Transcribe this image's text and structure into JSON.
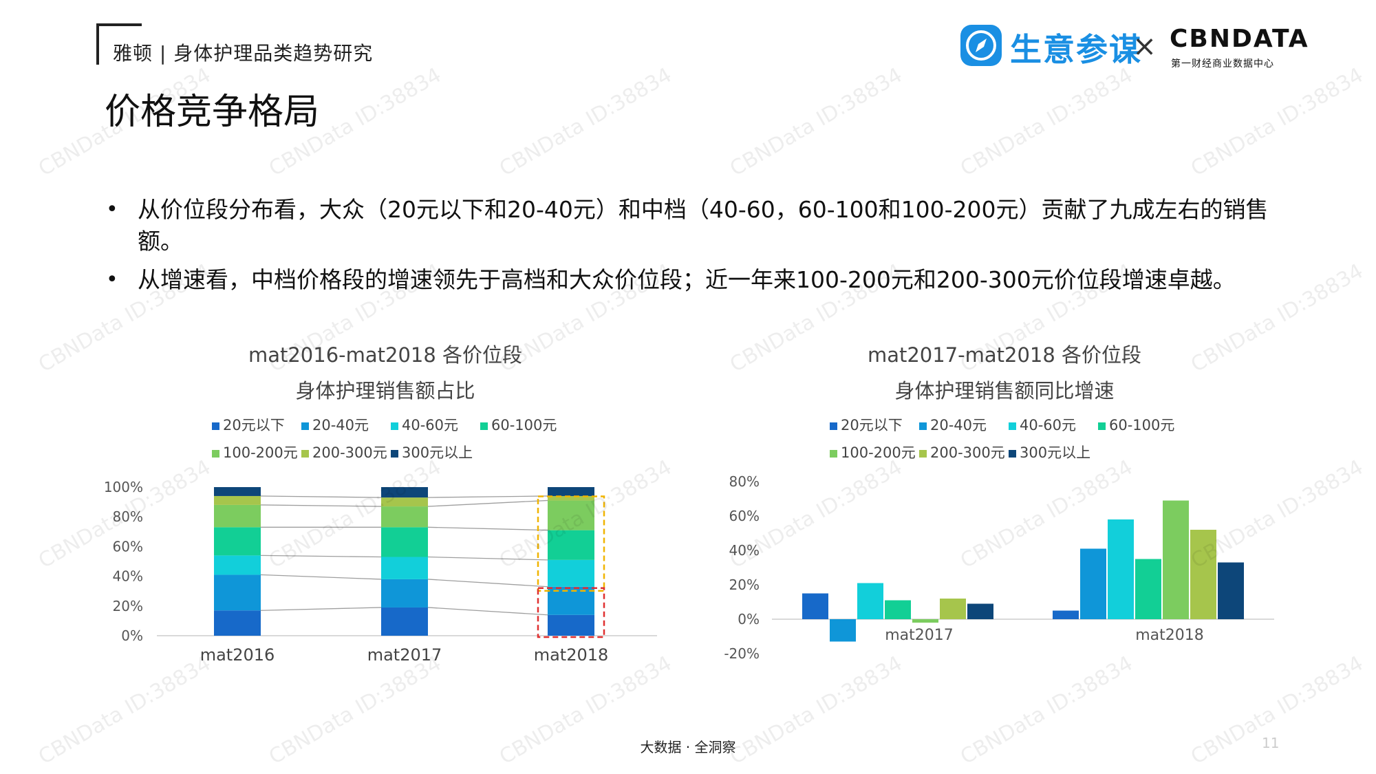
{
  "header": {
    "report_title": "雅顿 | 身体护理品类趋势研究",
    "page_title": "价格竞争格局",
    "logo_text": "生意参谋",
    "times_sign": "×",
    "cbndata": "CBNDATA",
    "cbndata_sub": "第一财经商业数据中心"
  },
  "bullets": [
    "从价位段分布看，大众（20元以下和20-40元）和中档（40-60，60-100和100-200元）贡献了九成左右的销售额。",
    "从增速看，中档价格段的增速领先于高档和大众价位段；近一年来100-200元和200-300元价位段增速卓越。"
  ],
  "watermark": "CBNData ID:38834",
  "footer": "大数据 · 全洞察",
  "page_number": "11",
  "colors": {
    "20元以下": "#1769c9",
    "20-40元": "#0f96d8",
    "40-60元": "#12cfda",
    "60-100元": "#12cf95",
    "100-200元": "#7ccc5f",
    "200-300元": "#a6c54c",
    "300元以上": "#0d4679"
  },
  "chart_data": [
    {
      "type": "bar",
      "stacked": true,
      "title": "mat2016-mat2018 各价位段",
      "subtitle": "身体护理销售额占比",
      "categories": [
        "mat2016",
        "mat2017",
        "mat2018"
      ],
      "ylim": [
        0,
        100
      ],
      "yticks": [
        "0%",
        "20%",
        "40%",
        "60%",
        "80%",
        "100%"
      ],
      "legend_position": "top",
      "series": [
        {
          "name": "20元以下",
          "values": [
            17,
            19,
            14
          ]
        },
        {
          "name": "20-40元",
          "values": [
            24,
            19,
            19
          ]
        },
        {
          "name": "40-60元",
          "values": [
            13,
            15,
            18
          ]
        },
        {
          "name": "60-100元",
          "values": [
            19,
            20,
            20
          ]
        },
        {
          "name": "100-200元",
          "values": [
            15,
            14,
            20
          ]
        },
        {
          "name": "200-300元",
          "values": [
            6,
            6,
            3
          ]
        },
        {
          "name": "300元以上",
          "values": [
            6,
            7,
            6
          ]
        }
      ],
      "annotations": [
        "yellow dashed box around 40-60元 to 100-200元 of mat2018",
        "red dashed box around 20元以下 and 20-40元 of mat2018"
      ]
    },
    {
      "type": "bar",
      "title": "mat2017-mat2018 各价位段",
      "subtitle": "身体护理销售额同比增速",
      "categories": [
        "mat2017",
        "mat2018"
      ],
      "ylim": [
        -20,
        80
      ],
      "yticks": [
        "-20%",
        "0%",
        "20%",
        "40%",
        "60%",
        "80%"
      ],
      "legend_position": "top",
      "series": [
        {
          "name": "20元以下",
          "values": [
            15,
            5
          ]
        },
        {
          "name": "20-40元",
          "values": [
            -13,
            41
          ]
        },
        {
          "name": "40-60元",
          "values": [
            21,
            58
          ]
        },
        {
          "name": "60-100元",
          "values": [
            11,
            35
          ]
        },
        {
          "name": "100-200元",
          "values": [
            -2,
            69
          ]
        },
        {
          "name": "200-300元",
          "values": [
            12,
            52
          ]
        },
        {
          "name": "300元以上",
          "values": [
            9,
            33
          ]
        }
      ]
    }
  ]
}
